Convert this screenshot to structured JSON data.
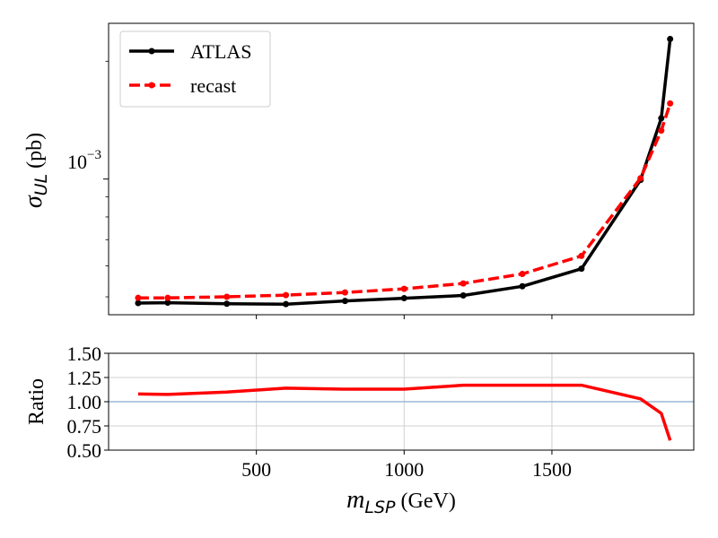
{
  "chart_data": [
    {
      "type": "line",
      "panel": "top",
      "ylabel_symbol": "σ",
      "ylabel_subscript": "UL",
      "ylabel_unit": "(pb)",
      "yscale": "log",
      "ylim": [
        0.00045,
        0.0025
      ],
      "xlim": [
        0,
        1980
      ],
      "y_tick_label": {
        "base": "10",
        "exponent": "−3",
        "value": 0.001
      },
      "legend": {
        "placement": "top-left",
        "entries": [
          "ATLAS",
          "recast"
        ]
      },
      "grid": false,
      "series": [
        {
          "name": "ATLAS",
          "color": "#000000",
          "style": "solid",
          "x": [
            100,
            200,
            400,
            600,
            800,
            1000,
            1200,
            1400,
            1600,
            1800,
            1870,
            1900
          ],
          "y": [
            0.000482,
            0.000483,
            0.00048,
            0.000479,
            0.000488,
            0.000496,
            0.000504,
            0.000532,
            0.00059,
            0.000995,
            0.00143,
            0.00228
          ]
        },
        {
          "name": "recast",
          "color": "#ff0000",
          "style": "dashed",
          "x": [
            100,
            200,
            400,
            600,
            800,
            1000,
            1200,
            1400,
            1600,
            1800,
            1870,
            1900
          ],
          "y": [
            0.000497,
            0.000497,
            0.0005,
            0.000505,
            0.000513,
            0.000524,
            0.000541,
            0.000572,
            0.000636,
            0.001005,
            0.00133,
            0.00156
          ]
        }
      ]
    },
    {
      "type": "line",
      "panel": "bottom",
      "ylabel": "Ratio",
      "xlabel_symbol": "m",
      "xlabel_subscript": "LSP",
      "xlabel_unit": "(GeV)",
      "xlim": [
        0,
        1980
      ],
      "ylim": [
        0.5,
        1.5
      ],
      "x_ticks": [
        500,
        1000,
        1500
      ],
      "y_ticks": [
        "0.50",
        "0.75",
        "1.00",
        "1.25",
        "1.50"
      ],
      "grid": true,
      "reference_line": {
        "y": 1.0,
        "color": "#9ab8d8"
      },
      "series": [
        {
          "color": "#ff0000",
          "x": [
            100,
            200,
            400,
            600,
            800,
            1000,
            1200,
            1400,
            1600,
            1800,
            1870,
            1900
          ],
          "y": [
            1.08,
            1.075,
            1.1,
            1.14,
            1.13,
            1.13,
            1.17,
            1.17,
            1.17,
            1.03,
            0.88,
            0.6
          ]
        }
      ]
    }
  ]
}
